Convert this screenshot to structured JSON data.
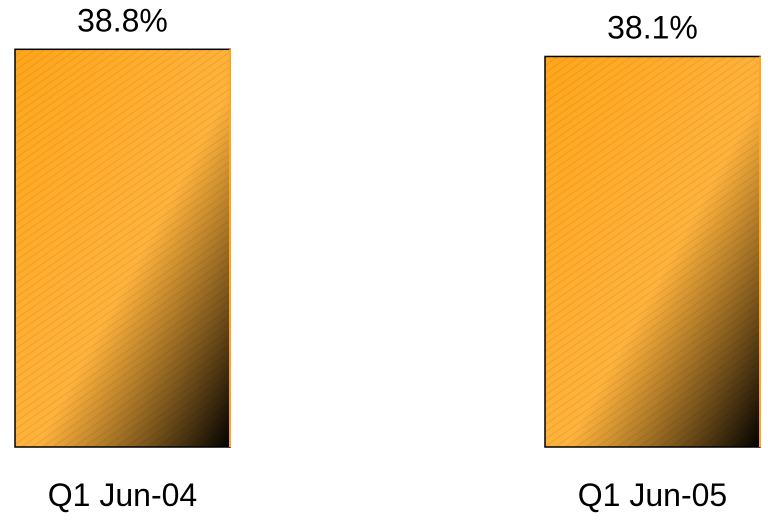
{
  "chart_data": {
    "type": "bar",
    "categories": [
      "Q1 Jun-04",
      "Q1 Jun-05"
    ],
    "values": [
      38.8,
      38.1
    ],
    "data_labels": [
      "38.8%",
      "38.1%"
    ],
    "title": "",
    "xlabel": "",
    "ylabel": "",
    "grid": false,
    "legend": "none",
    "colors": {
      "bar_light": "#ffa51a",
      "bar_dark": "#000000",
      "bar_edge": "#000000"
    }
  }
}
